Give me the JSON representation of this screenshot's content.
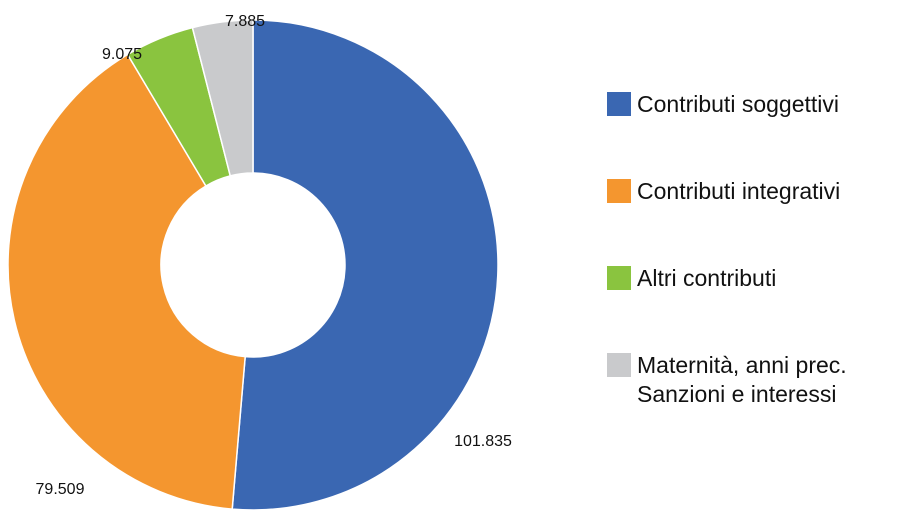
{
  "chart_data": {
    "type": "donut",
    "categories": [
      "Contributi soggettivi",
      "Contributi integrativi",
      "Altri contributi",
      "Maternità, anni prec.\nSanzioni e interessi"
    ],
    "values": [
      101835,
      79509,
      9075,
      7885
    ],
    "value_labels": [
      "101.835",
      "79.509",
      "9.075",
      "7.885"
    ],
    "colors": [
      "#3a67b2",
      "#f4962f",
      "#8ac43f",
      "#c9cacc"
    ]
  }
}
